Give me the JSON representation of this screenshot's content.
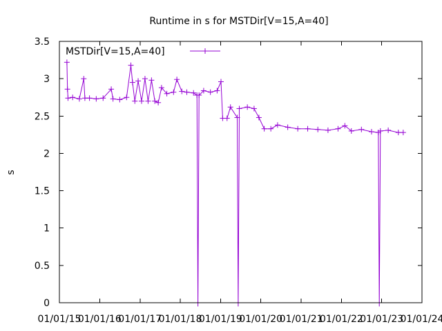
{
  "chart_data": {
    "type": "line",
    "title": "Runtime in s for MSTDir[V=15,A=40]",
    "xlabel": "",
    "ylabel": "s",
    "xlim": [
      "2015-01-01",
      "2024-01-01"
    ],
    "ylim": [
      0,
      3.5
    ],
    "y_ticks": [
      0,
      0.5,
      1,
      1.5,
      2,
      2.5,
      3,
      3.5
    ],
    "y_tick_labels": [
      "0",
      "0.5",
      "1",
      "1.5",
      "2",
      "2.5",
      "3",
      "3.5"
    ],
    "x_ticks": [
      "2015-01-01",
      "2016-01-01",
      "2017-01-01",
      "2018-01-01",
      "2019-01-01",
      "2020-01-01",
      "2021-01-01",
      "2022-01-01",
      "2023-01-01",
      "2024-01-01"
    ],
    "x_tick_labels": [
      "01/01/15",
      "01/01/16",
      "01/01/17",
      "01/01/18",
      "01/01/19",
      "01/01/20",
      "01/01/21",
      "01/01/22",
      "01/01/23",
      "01/01/24"
    ],
    "grid": false,
    "legend": {
      "position": "top-left"
    },
    "series": [
      {
        "name": "MSTDir[V=15,A=40]",
        "color": "#9400d3",
        "marker": "plus",
        "points": [
          [
            "2015-03-10",
            3.22
          ],
          [
            "2015-03-15",
            2.86
          ],
          [
            "2015-03-20",
            2.74
          ],
          [
            "2015-05-01",
            2.75
          ],
          [
            "2015-07-01",
            2.73
          ],
          [
            "2015-08-10",
            3.0
          ],
          [
            "2015-08-20",
            2.74
          ],
          [
            "2015-10-01",
            2.74
          ],
          [
            "2015-12-01",
            2.73
          ],
          [
            "2016-02-01",
            2.74
          ],
          [
            "2016-04-15",
            2.86
          ],
          [
            "2016-05-01",
            2.73
          ],
          [
            "2016-07-01",
            2.72
          ],
          [
            "2016-09-01",
            2.75
          ],
          [
            "2016-10-10",
            3.18
          ],
          [
            "2016-10-25",
            2.95
          ],
          [
            "2016-11-15",
            2.7
          ],
          [
            "2016-12-15",
            2.97
          ],
          [
            "2017-01-15",
            2.7
          ],
          [
            "2017-02-15",
            3.0
          ],
          [
            "2017-03-15",
            2.7
          ],
          [
            "2017-04-15",
            2.98
          ],
          [
            "2017-05-15",
            2.7
          ],
          [
            "2017-06-15",
            2.68
          ],
          [
            "2017-07-15",
            2.88
          ],
          [
            "2017-09-01",
            2.8
          ],
          [
            "2017-11-01",
            2.82
          ],
          [
            "2017-12-01",
            2.99
          ],
          [
            "2018-01-15",
            2.83
          ],
          [
            "2018-03-01",
            2.82
          ],
          [
            "2018-05-01",
            2.81
          ],
          [
            "2018-06-01",
            2.78
          ],
          [
            "2018-06-10",
            -0.05
          ],
          [
            "2018-06-20",
            2.78
          ],
          [
            "2018-08-01",
            2.84
          ],
          [
            "2018-10-01",
            2.82
          ],
          [
            "2018-12-01",
            2.84
          ],
          [
            "2019-01-05",
            2.96
          ],
          [
            "2019-01-20",
            2.47
          ],
          [
            "2019-03-01",
            2.47
          ],
          [
            "2019-04-01",
            2.62
          ],
          [
            "2019-06-01",
            2.48
          ],
          [
            "2019-06-10",
            -0.05
          ],
          [
            "2019-06-20",
            2.6
          ],
          [
            "2019-09-01",
            2.62
          ],
          [
            "2019-11-01",
            2.6
          ],
          [
            "2019-12-15",
            2.48
          ],
          [
            "2020-02-01",
            2.33
          ],
          [
            "2020-04-01",
            2.33
          ],
          [
            "2020-06-01",
            2.38
          ],
          [
            "2020-09-01",
            2.35
          ],
          [
            "2020-12-01",
            2.33
          ],
          [
            "2021-03-01",
            2.33
          ],
          [
            "2021-06-01",
            2.32
          ],
          [
            "2021-09-01",
            2.31
          ],
          [
            "2021-12-01",
            2.33
          ],
          [
            "2022-02-01",
            2.37
          ],
          [
            "2022-04-01",
            2.3
          ],
          [
            "2022-07-01",
            2.32
          ],
          [
            "2022-10-01",
            2.29
          ],
          [
            "2022-12-01",
            2.28
          ],
          [
            "2022-12-10",
            -0.05
          ],
          [
            "2022-12-20",
            2.3
          ],
          [
            "2023-03-01",
            2.31
          ],
          [
            "2023-06-01",
            2.28
          ],
          [
            "2023-07-15",
            2.28
          ]
        ]
      }
    ]
  }
}
